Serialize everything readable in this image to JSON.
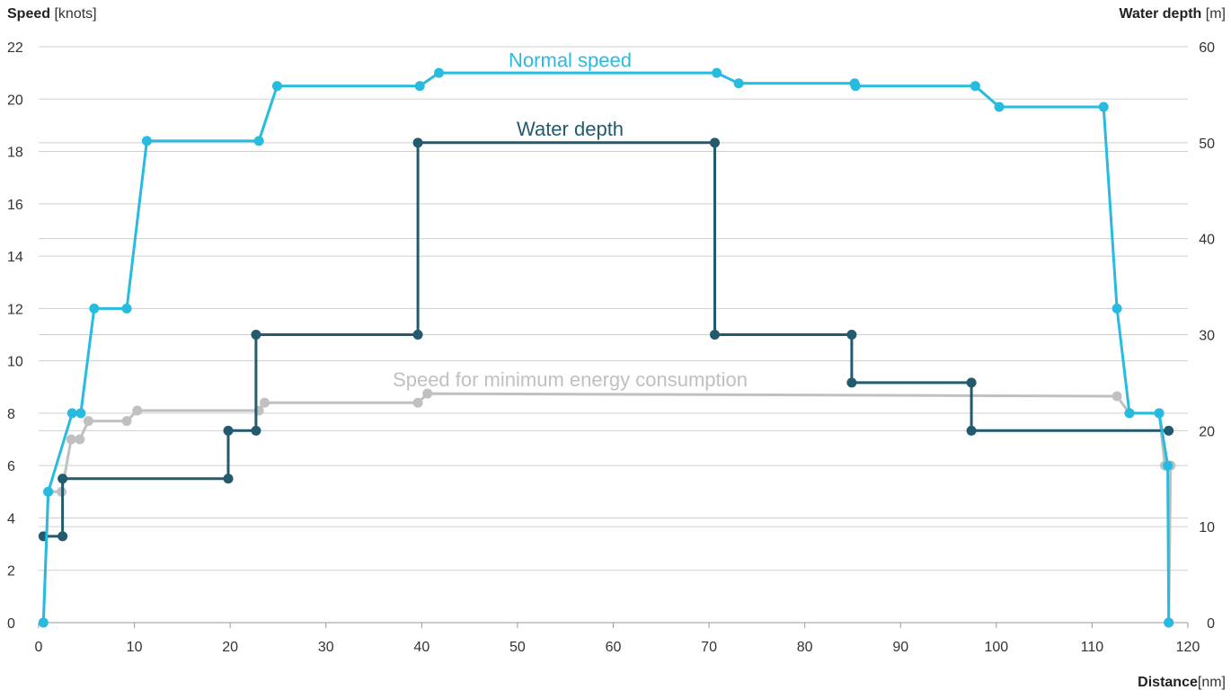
{
  "chart_data": {
    "type": "line",
    "y_left_label": "Speed",
    "y_left_unit": "[knots]",
    "y_right_label": "Water depth",
    "y_right_unit": "[m]",
    "x_label": "Distance",
    "x_unit": "[nm]",
    "xlim": [
      0,
      120
    ],
    "ylim_left": [
      0,
      22
    ],
    "ylim_right": [
      0,
      60
    ],
    "x_ticks": [
      0,
      10,
      20,
      30,
      40,
      50,
      60,
      70,
      80,
      90,
      100,
      110,
      120
    ],
    "y_left_ticks": [
      0,
      2,
      4,
      6,
      8,
      10,
      12,
      14,
      16,
      18,
      20,
      22
    ],
    "y_right_ticks": [
      0,
      10,
      20,
      30,
      40,
      50,
      60
    ],
    "grid": true,
    "series": [
      {
        "name": "Normal speed",
        "axis": "left",
        "color": "#27bbe0",
        "points": [
          [
            0.5,
            0
          ],
          [
            1.0,
            5
          ],
          [
            3.5,
            8
          ],
          [
            4.4,
            8
          ],
          [
            5.8,
            12
          ],
          [
            9.2,
            12
          ],
          [
            11.3,
            18.4
          ],
          [
            23.0,
            18.4
          ],
          [
            24.9,
            20.5
          ],
          [
            39.8,
            20.5
          ],
          [
            41.8,
            21
          ],
          [
            70.8,
            21
          ],
          [
            73.1,
            20.6
          ],
          [
            85.2,
            20.6
          ],
          [
            85.3,
            20.5
          ],
          [
            97.8,
            20.5
          ],
          [
            100.3,
            19.7
          ],
          [
            111.2,
            19.7
          ],
          [
            112.6,
            12
          ],
          [
            113.9,
            8
          ],
          [
            117.0,
            8
          ],
          [
            117.9,
            6
          ],
          [
            118.0,
            0
          ]
        ]
      },
      {
        "name": "Water depth",
        "axis": "right",
        "color": "#235a6e",
        "points": [
          [
            0.5,
            9
          ],
          [
            2.5,
            9
          ],
          [
            2.5,
            15
          ],
          [
            19.8,
            15
          ],
          [
            19.8,
            20
          ],
          [
            22.7,
            20
          ],
          [
            22.7,
            30
          ],
          [
            39.6,
            30
          ],
          [
            39.6,
            50
          ],
          [
            70.6,
            50
          ],
          [
            70.6,
            30
          ],
          [
            84.9,
            30
          ],
          [
            84.9,
            25
          ],
          [
            97.4,
            25
          ],
          [
            97.4,
            20
          ],
          [
            118.0,
            20
          ]
        ]
      },
      {
        "name": "Speed for minimum energy consumption",
        "axis": "left",
        "color": "#c0c0c0",
        "points": [
          [
            0.5,
            0
          ],
          [
            1.0,
            5
          ],
          [
            2.4,
            5
          ],
          [
            3.4,
            7
          ],
          [
            4.3,
            7
          ],
          [
            5.2,
            7.7
          ],
          [
            9.2,
            7.7
          ],
          [
            10.3,
            8.1
          ],
          [
            23.0,
            8.1
          ],
          [
            23.6,
            8.4
          ],
          [
            39.6,
            8.4
          ],
          [
            40.6,
            8.75
          ],
          [
            112.6,
            8.65
          ],
          [
            113.9,
            8
          ],
          [
            117.0,
            8
          ],
          [
            117.6,
            6
          ],
          [
            118.2,
            6
          ],
          [
            118.0,
            0
          ]
        ]
      }
    ],
    "labels": [
      {
        "text": "Normal speed",
        "series": 0,
        "x": 55.5,
        "y": 21.5,
        "axis": "left"
      },
      {
        "text": "Water depth",
        "series": 1,
        "x": 55.5,
        "y": 51.5,
        "axis": "right"
      },
      {
        "text": "Speed for minimum energy consumption",
        "series": 2,
        "x": 55.5,
        "y": 9.3,
        "axis": "left"
      }
    ]
  }
}
